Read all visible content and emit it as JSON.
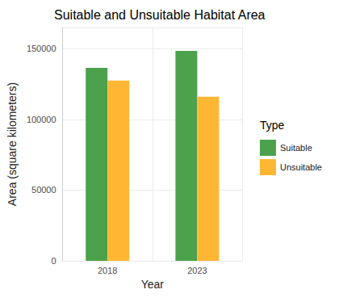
{
  "chart_data": {
    "type": "bar",
    "title": "Suitable and Unsuitable Habitat Area",
    "x_label": "Year",
    "y_label": "Area (square kilometers)",
    "legend_title": "Type",
    "legend": "right",
    "categories": [
      "2018",
      "2023"
    ],
    "series": [
      {
        "name": "Suitable",
        "color": "#4CA24C",
        "values": [
          136500,
          148500
        ]
      },
      {
        "name": "Unsuitable",
        "color": "#FFB733",
        "values": [
          127500,
          116000
        ]
      }
    ],
    "ylim": [
      0,
      165000
    ],
    "yticks": [
      0,
      50000,
      100000,
      150000
    ],
    "grid": true
  }
}
